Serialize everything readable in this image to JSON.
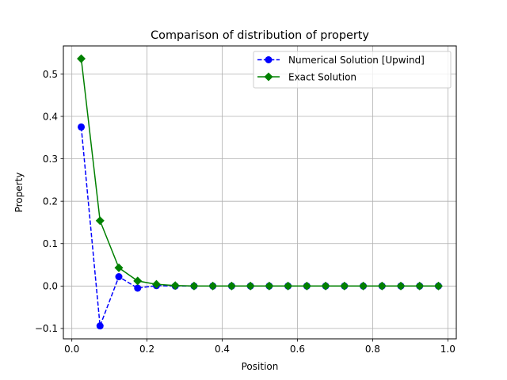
{
  "chart_data": {
    "type": "line",
    "title": "Comparison of distribution of property",
    "xlabel": "Position",
    "ylabel": "Property",
    "xlim": [
      -0.0225,
      1.0225
    ],
    "ylim": [
      -0.1245,
      0.5662
    ],
    "xticks": [
      0.0,
      0.2,
      0.4,
      0.6,
      0.8,
      1.0
    ],
    "xtick_labels": [
      "0.0",
      "0.2",
      "0.4",
      "0.6",
      "0.8",
      "1.0"
    ],
    "yticks": [
      -0.1,
      0.0,
      0.1,
      0.2,
      0.3,
      0.4,
      0.5
    ],
    "ytick_labels": [
      "−0.1",
      "0.0",
      "0.1",
      "0.2",
      "0.3",
      "0.4",
      "0.5"
    ],
    "grid": true,
    "legend_position": "top-right",
    "x": [
      0.025,
      0.075,
      0.125,
      0.175,
      0.225,
      0.275,
      0.325,
      0.375,
      0.425,
      0.475,
      0.525,
      0.575,
      0.625,
      0.675,
      0.725,
      0.775,
      0.825,
      0.875,
      0.925,
      0.975
    ],
    "series": [
      {
        "name": "Numerical Solution [Upwind]",
        "color": "#0000ff",
        "linestyle": "dashed",
        "marker": "circle",
        "values": [
          0.375,
          -0.094,
          0.022,
          -0.005,
          0.001,
          0,
          0,
          0,
          0,
          0,
          0,
          0,
          0,
          0,
          0,
          0,
          0,
          0,
          0,
          0
        ]
      },
      {
        "name": "Exact Solution",
        "color": "#008000",
        "linestyle": "solid",
        "marker": "diamond",
        "values": [
          0.536,
          0.154,
          0.043,
          0.012,
          0.004,
          0.001,
          0,
          0,
          0,
          0,
          0,
          0,
          0,
          0,
          0,
          0,
          0,
          0,
          0,
          0
        ]
      }
    ]
  }
}
